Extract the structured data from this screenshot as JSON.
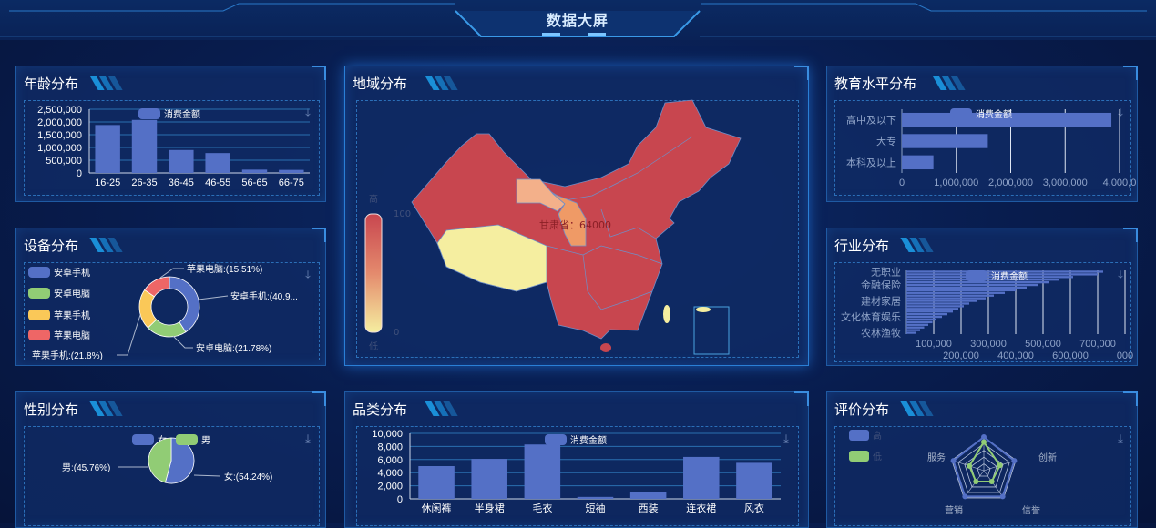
{
  "header": {
    "title": "数据大屏"
  },
  "colors": {
    "blue": "#5470c6",
    "green": "#91cc75",
    "yellow": "#fac858",
    "red": "#ee6666",
    "map_high": "#c8464f",
    "map_low": "#f5eea0"
  },
  "panels": {
    "age": {
      "title": "年龄分布"
    },
    "device": {
      "title": "设备分布"
    },
    "gender": {
      "title": "性别分布"
    },
    "region": {
      "title": "地域分布"
    },
    "category": {
      "title": "品类分布"
    },
    "education": {
      "title": "教育水平分布"
    },
    "industry": {
      "title": "行业分布"
    },
    "rating": {
      "title": "评价分布"
    }
  },
  "map": {
    "visual_map": {
      "high_text": "高",
      "low_text": "低",
      "max": "100",
      "min": "0"
    },
    "tooltip": "甘肃省：64000",
    "highlight": {
      "region": "甘肃省",
      "value": 64000
    }
  },
  "chart_data": [
    {
      "id": "age",
      "type": "bar",
      "categories": [
        "16-25",
        "26-35",
        "36-45",
        "46-55",
        "56-65",
        "66-75"
      ],
      "series": [
        {
          "name": "消费金额",
          "values": [
            1880000,
            2080000,
            900000,
            780000,
            130000,
            120000
          ]
        }
      ],
      "ylim": [
        0,
        2500000
      ],
      "yticks": [
        "0",
        "500,000",
        "1,000,000",
        "1,500,000",
        "2,000,000",
        "2,500,000"
      ],
      "grid": true,
      "legend": "top"
    },
    {
      "id": "category",
      "type": "bar",
      "categories": [
        "休闲裤",
        "半身裙",
        "毛衣",
        "短袖",
        "西装",
        "连衣裙",
        "风衣"
      ],
      "series": [
        {
          "name": "消费金额",
          "values": [
            5000,
            6100,
            8300,
            300,
            1000,
            6400,
            5500
          ]
        }
      ],
      "ylim": [
        0,
        10000
      ],
      "yticks": [
        "0",
        "2,000",
        "4,000",
        "6,000",
        "8,000",
        "10,000"
      ],
      "grid": true,
      "legend": "top"
    },
    {
      "id": "education",
      "type": "bar",
      "orientation": "horizontal",
      "categories": [
        "高中及以下",
        "大专",
        "本科及以上"
      ],
      "series": [
        {
          "name": "消费金额",
          "values": [
            3850000,
            1580000,
            580000
          ]
        }
      ],
      "xlim": [
        0,
        4000000
      ],
      "xticks": [
        "0",
        "1,000,000",
        "2,000,000",
        "3,000,000",
        "4,000,0"
      ],
      "grid": true,
      "legend": "top"
    },
    {
      "id": "industry",
      "type": "bar",
      "orientation": "horizontal",
      "categories": [
        "无职业",
        "",
        "",
        "",
        "",
        "金融保险",
        "",
        "",
        "",
        "",
        "",
        "建材家居",
        "",
        "",
        "",
        "",
        "",
        "文化体育娱乐",
        "",
        "",
        "",
        "",
        "",
        "农林渔牧"
      ],
      "series": [
        {
          "name": "消费金额",
          "values": [
            720000,
            700000,
            610000,
            560000,
            520000,
            480000,
            440000,
            400000,
            360000,
            320000,
            290000,
            260000,
            230000,
            210000,
            190000,
            170000,
            150000,
            130000,
            110000,
            95000,
            80000,
            65000,
            50000,
            35000
          ]
        }
      ],
      "xlim": [
        0,
        800000
      ],
      "xticks": [
        "100,000",
        "200,000",
        "300,000",
        "400,000",
        "500,000",
        "600,000",
        "700,000",
        "000"
      ],
      "grid": true,
      "legend": "top"
    },
    {
      "id": "device",
      "type": "pie",
      "donut": true,
      "slices": [
        {
          "name": "安卓手机",
          "value": 40.9,
          "label": "安卓手机:(40.9..."
        },
        {
          "name": "安卓电脑",
          "value": 21.78,
          "label": "安卓电脑:(21.78%)"
        },
        {
          "name": "苹果手机",
          "value": 21.8,
          "label": "苹果手机:(21.8%)"
        },
        {
          "name": "苹果电脑",
          "value": 15.51,
          "label": "苹果电脑:(15.51%)"
        }
      ],
      "legend": "left"
    },
    {
      "id": "gender",
      "type": "pie",
      "slices": [
        {
          "name": "女",
          "value": 54.24,
          "label": "女:(54.24%)"
        },
        {
          "name": "男",
          "value": 45.76,
          "label": "男:(45.76%)"
        }
      ],
      "legend": "top"
    },
    {
      "id": "rating",
      "type": "radar",
      "indicators": [
        "",
        "服务",
        "营销",
        "信誉",
        "创新"
      ],
      "series": [
        {
          "name": "高",
          "values": [
            1,
            0.95,
            0.95,
            0.95,
            0.95
          ]
        },
        {
          "name": "低",
          "values": [
            0.85,
            0.45,
            0.4,
            0.4,
            0.5
          ]
        }
      ],
      "legend": "top-left"
    }
  ]
}
